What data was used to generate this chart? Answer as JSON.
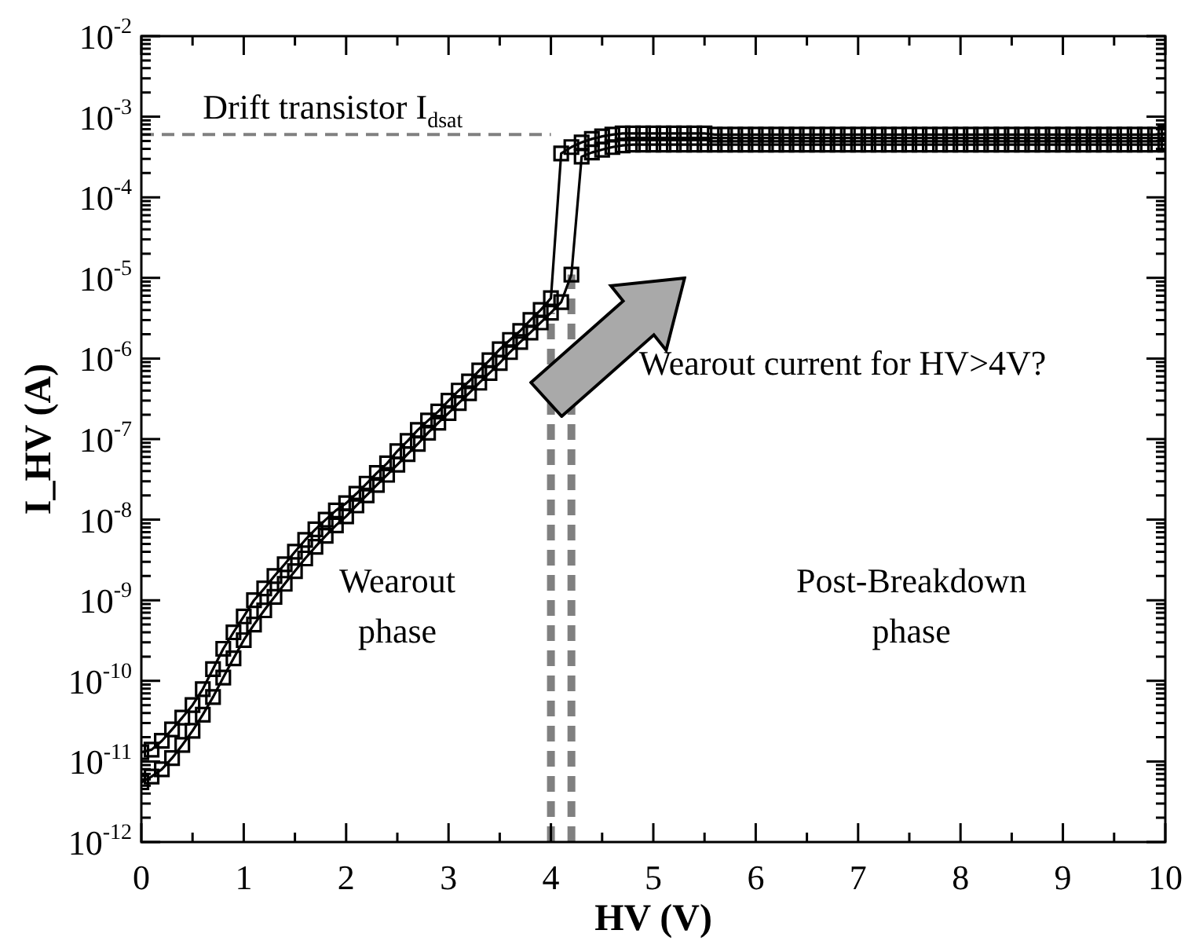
{
  "chart_data": {
    "type": "line",
    "xlabel": "HV (V)",
    "ylabel": "I_HV (A)",
    "log": "y",
    "grid": false,
    "legend": false,
    "marker": "square",
    "line_style": "solid",
    "xlim": [
      0,
      10
    ],
    "xticks": [
      0,
      1,
      2,
      3,
      4,
      5,
      6,
      7,
      8,
      9,
      10
    ],
    "ylim": [
      1e-12,
      0.01
    ],
    "yticks": [
      {
        "value": 1e-12,
        "label": "10$^{-12}$"
      },
      {
        "value": 1e-11,
        "label": "10$^{-11}$"
      },
      {
        "value": 1e-10,
        "label": "10$^{-10}$"
      },
      {
        "value": 1e-09,
        "label": "10$^{-9}$"
      },
      {
        "value": 1e-08,
        "label": "10$^{-8}$"
      },
      {
        "value": 1e-07,
        "label": "10$^{-7}$"
      },
      {
        "value": 1e-06,
        "label": "10$^{-6}$"
      },
      {
        "value": 1e-05,
        "label": "10$^{-5}$"
      },
      {
        "value": 0.0001,
        "label": "10$^{-4}$"
      },
      {
        "value": 0.001,
        "label": "10$^{-3}$"
      },
      {
        "value": 0.01,
        "label": "10$^{-2}$"
      }
    ],
    "series": [
      {
        "color": "#000000",
        "x": [
          0,
          0.1,
          0.2,
          0.3,
          0.4,
          0.5,
          0.6,
          0.7,
          0.8,
          0.9,
          1,
          1.1,
          1.2,
          1.3,
          1.4,
          1.5,
          1.6,
          1.7,
          1.8,
          1.9,
          2,
          2.1,
          2.2,
          2.3,
          2.4,
          2.5,
          2.6,
          2.7,
          2.8,
          2.9,
          3,
          3.1,
          3.2,
          3.3,
          3.4,
          3.5,
          3.6,
          3.7,
          3.8,
          3.9,
          4,
          4.1,
          4.2,
          4.3,
          4.4,
          4.5,
          4.6,
          4.7,
          4.8,
          4.9,
          5,
          5.1,
          5.2,
          5.3,
          5.4,
          5.5,
          5.6,
          5.7,
          5.8,
          5.9,
          6,
          6.1,
          6.2,
          6.3,
          6.4,
          6.5,
          6.6,
          6.7,
          6.8,
          6.9,
          7,
          7.1,
          7.2,
          7.3,
          7.4,
          7.5,
          7.6,
          7.7,
          7.8,
          7.9,
          8,
          8.1,
          8.2,
          8.3,
          8.4,
          8.5,
          8.6,
          8.7,
          8.8,
          8.9,
          9,
          9.1,
          9.2,
          9.3,
          9.4,
          9.5,
          9.6,
          9.7,
          9.8,
          9.9,
          10
        ],
        "values": [
          1.3e-11,
          1.4e-11,
          1.8e-11,
          2.5e-11,
          3.5e-11,
          5e-11,
          7.9e-11,
          1.4e-10,
          2.5e-10,
          4e-10,
          6.3e-10,
          1e-09,
          1.4e-09,
          2e-09,
          2.8e-09,
          4e-09,
          5.6e-09,
          7.6e-09,
          1e-08,
          1.3e-08,
          1.6e-08,
          2.1e-08,
          2.8e-08,
          3.8e-08,
          5e-08,
          7.1e-08,
          9.5e-08,
          1.3e-07,
          1.7e-07,
          2.2e-07,
          3e-07,
          4e-07,
          5.2e-07,
          7.1e-07,
          9.5e-07,
          1.3e-06,
          1.7e-06,
          2.2e-06,
          3e-06,
          4e-06,
          5.6e-06,
          0.00035,
          0.00042,
          0.00048,
          0.00053,
          0.00057,
          0.0006,
          0.00062,
          0.00062,
          0.00062,
          0.00062,
          0.00062,
          0.00062,
          0.00062,
          0.00062,
          0.00062,
          0.0006,
          0.0006,
          0.0006,
          0.0006,
          0.0006,
          0.0006,
          0.0006,
          0.0006,
          0.0006,
          0.0006,
          0.0006,
          0.0006,
          0.0006,
          0.0006,
          0.0006,
          0.0006,
          0.0006,
          0.0006,
          0.0006,
          0.0006,
          0.0006,
          0.0006,
          0.0006,
          0.0006,
          0.0006,
          0.0006,
          0.0006,
          0.0006,
          0.0006,
          0.0006,
          0.0006,
          0.0006,
          0.0006,
          0.0006,
          0.0006,
          0.0006,
          0.0006,
          0.0006,
          0.0006,
          0.0006,
          0.0006,
          0.0006,
          0.0006,
          0.0006,
          0.00062
        ]
      },
      {
        "color": "#000000",
        "x": [
          0,
          0.1,
          0.2,
          0.3,
          0.4,
          0.5,
          0.6,
          0.7,
          0.8,
          0.9,
          1,
          1.1,
          1.2,
          1.3,
          1.4,
          1.5,
          1.6,
          1.7,
          1.8,
          1.9,
          2,
          2.1,
          2.2,
          2.3,
          2.4,
          2.5,
          2.6,
          2.7,
          2.8,
          2.9,
          3,
          3.1,
          3.2,
          3.3,
          3.4,
          3.5,
          3.6,
          3.7,
          3.8,
          3.9,
          4,
          4.1,
          4.2,
          4.3,
          4.4,
          4.5,
          4.6,
          4.7,
          4.8,
          4.9,
          5,
          5.1,
          5.2,
          5.3,
          5.4,
          5.5,
          5.6,
          5.7,
          5.8,
          5.9,
          6,
          6.1,
          6.2,
          6.3,
          6.4,
          6.5,
          6.6,
          6.7,
          6.8,
          6.9,
          7,
          7.1,
          7.2,
          7.3,
          7.4,
          7.5,
          7.6,
          7.7,
          7.8,
          7.9,
          8,
          8.1,
          8.2,
          8.3,
          8.4,
          8.5,
          8.6,
          8.7,
          8.8,
          8.9,
          9,
          9.1,
          9.2,
          9.3,
          9.4,
          9.5,
          9.6,
          9.7,
          9.8,
          9.9,
          10
        ],
        "values": [
          5.5e-12,
          6.5e-12,
          8e-12,
          1.1e-11,
          1.6e-11,
          2.4e-11,
          3.8e-11,
          6.3e-11,
          1.1e-10,
          1.9e-10,
          3.2e-10,
          5e-10,
          7.5e-10,
          1.1e-09,
          1.6e-09,
          2.3e-09,
          3.3e-09,
          4.6e-09,
          6.3e-09,
          8.5e-09,
          1.1e-08,
          1.5e-08,
          2e-08,
          2.7e-08,
          3.6e-08,
          4.8e-08,
          6.5e-08,
          8.7e-08,
          1.2e-07,
          1.6e-07,
          2.1e-07,
          2.8e-07,
          3.7e-07,
          5e-07,
          6.6e-07,
          8.8e-07,
          1.2e-06,
          1.6e-06,
          2.1e-06,
          2.8e-06,
          3.7e-06,
          5e-06,
          1.1e-05,
          0.00032,
          0.00036,
          0.00039,
          0.00042,
          0.00044,
          0.00045,
          0.00045,
          0.00045,
          0.00045,
          0.00045,
          0.00045,
          0.00045,
          0.00045,
          0.00045,
          0.00045,
          0.00045,
          0.00045,
          0.00045,
          0.00045,
          0.00045,
          0.00045,
          0.00045,
          0.00045,
          0.00045,
          0.00045,
          0.00045,
          0.00045,
          0.00045,
          0.00045,
          0.00045,
          0.00045,
          0.00045,
          0.00045,
          0.00045,
          0.00045,
          0.00045,
          0.00045,
          0.00045,
          0.00045,
          0.00045,
          0.00045,
          0.00045,
          0.00045,
          0.00045,
          0.00045,
          0.00045,
          0.00045,
          0.00045,
          0.00045,
          0.00045,
          0.00045,
          0.00045,
          0.00045,
          0.00045,
          0.00045,
          0.00045,
          0.00045,
          0.00045
        ]
      }
    ],
    "ref_lines": [
      {
        "axis": "y",
        "value": 0.0006,
        "label": "Drift transistor I$_{dsat}$",
        "color": "#808080",
        "line_style": "dashed"
      },
      {
        "axis": "x",
        "value": 4,
        "color": "#808080",
        "line_style": "dashed"
      },
      {
        "axis": "x",
        "value": 4.2,
        "color": "#808080",
        "line_style": "dashed"
      }
    ],
    "annotations": [
      "Wearout\nphase",
      "Post-Breakdown\nphase",
      "Wearout current for HV>4V?"
    ]
  }
}
